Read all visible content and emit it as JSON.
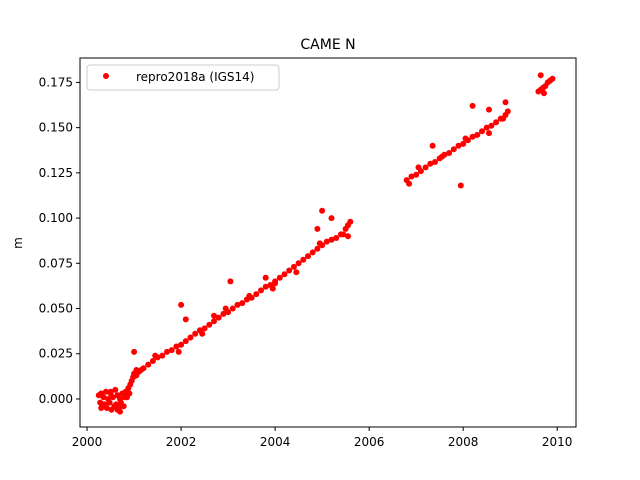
{
  "chart_data": {
    "type": "scatter",
    "title": "CAME N",
    "xlabel": "",
    "ylabel": "m",
    "xlim": [
      1999.85,
      2010.4
    ],
    "ylim": [
      -0.0155,
      0.1885
    ],
    "grid": false,
    "legend": {
      "placement": "top-left",
      "entries": [
        "repro2018a (IGS14)"
      ]
    },
    "x_ticks": [
      2000,
      2002,
      2004,
      2006,
      2008,
      2010
    ],
    "x_tick_labels": [
      "2000",
      "2002",
      "2004",
      "2006",
      "2008",
      "2010"
    ],
    "y_ticks": [
      0.0,
      0.025,
      0.05,
      0.075,
      0.1,
      0.125,
      0.15,
      0.175
    ],
    "y_tick_labels": [
      "0.000",
      "0.025",
      "0.050",
      "0.075",
      "0.100",
      "0.125",
      "0.150",
      "0.175"
    ],
    "series": [
      {
        "name": "repro2018a (IGS14)",
        "color": "#ff0000",
        "marker": "circle",
        "x": [
          2000.25,
          2000.28,
          2000.3,
          2000.32,
          2000.35,
          2000.38,
          2000.4,
          2000.42,
          2000.45,
          2000.48,
          2000.5,
          2000.52,
          2000.55,
          2000.58,
          2000.6,
          2000.62,
          2000.65,
          2000.68,
          2000.7,
          2000.72,
          2000.75,
          2000.78,
          2000.8,
          2000.82,
          2000.85,
          2000.88,
          2000.9,
          2000.92,
          2000.95,
          2000.98,
          2001.0,
          2001.05,
          2001.1,
          2001.15,
          2001.2,
          2001.3,
          2001.4,
          2001.5,
          2001.6,
          2001.7,
          2001.8,
          2001.9,
          2002.0,
          2002.1,
          2002.2,
          2002.3,
          2002.4,
          2002.5,
          2002.6,
          2002.7,
          2002.8,
          2002.9,
          2003.0,
          2003.1,
          2003.2,
          2003.3,
          2003.4,
          2003.5,
          2003.6,
          2003.7,
          2003.8,
          2003.9,
          2004.0,
          2004.1,
          2004.2,
          2004.3,
          2004.4,
          2004.5,
          2004.6,
          2004.7,
          2004.8,
          2004.9,
          2005.0,
          2005.1,
          2005.2,
          2005.3,
          2005.4,
          2005.5,
          2005.55,
          2005.6,
          2006.8,
          2006.9,
          2007.0,
          2007.1,
          2007.2,
          2007.3,
          2007.4,
          2007.5,
          2007.6,
          2007.7,
          2007.8,
          2007.9,
          2008.0,
          2008.1,
          2008.2,
          2008.3,
          2008.4,
          2008.5,
          2008.6,
          2008.7,
          2008.8,
          2008.9,
          2008.95,
          2009.6,
          2009.65,
          2009.7,
          2009.75,
          2009.8,
          2009.85,
          2009.9,
          2000.35,
          2000.5,
          2000.65,
          2000.8,
          2001.05,
          2001.45,
          2001.95,
          2002.45,
          2002.95,
          2003.45,
          2003.95,
          2004.45,
          2004.95,
          2005.45,
          2007.05,
          2007.55,
          2008.05,
          2008.55,
          2008.85,
          2009.72,
          2001.0,
          2002.0,
          2002.1,
          2003.05,
          2004.9,
          2005.0,
          2005.2,
          2005.55,
          2007.35,
          2007.95,
          2008.2,
          2008.55,
          2008.9,
          2009.65,
          2003.8,
          2004.0,
          2006.85,
          2000.3,
          2000.7,
          2002.7
        ],
        "y": [
          0.002,
          -0.002,
          0.003,
          -0.004,
          0.001,
          -0.003,
          0.004,
          -0.005,
          0.0,
          -0.002,
          0.003,
          -0.006,
          0.001,
          -0.004,
          0.005,
          -0.003,
          0.002,
          -0.005,
          0.0,
          -0.002,
          0.003,
          -0.004,
          0.002,
          0.004,
          0.001,
          0.006,
          0.003,
          0.008,
          0.01,
          0.012,
          0.014,
          0.013,
          0.015,
          0.016,
          0.017,
          0.019,
          0.021,
          0.023,
          0.024,
          0.026,
          0.027,
          0.029,
          0.03,
          0.032,
          0.034,
          0.036,
          0.038,
          0.039,
          0.041,
          0.043,
          0.045,
          0.047,
          0.048,
          0.05,
          0.052,
          0.053,
          0.055,
          0.056,
          0.058,
          0.06,
          0.062,
          0.063,
          0.065,
          0.067,
          0.069,
          0.071,
          0.073,
          0.075,
          0.077,
          0.079,
          0.081,
          0.083,
          0.085,
          0.087,
          0.088,
          0.089,
          0.091,
          0.094,
          0.096,
          0.098,
          0.121,
          0.123,
          0.124,
          0.126,
          0.128,
          0.13,
          0.131,
          0.133,
          0.135,
          0.136,
          0.138,
          0.14,
          0.141,
          0.143,
          0.145,
          0.146,
          0.148,
          0.15,
          0.151,
          0.153,
          0.155,
          0.157,
          0.159,
          0.17,
          0.171,
          0.172,
          0.173,
          0.175,
          0.176,
          0.177,
          -0.003,
          0.004,
          -0.006,
          0.001,
          0.016,
          0.024,
          0.026,
          0.036,
          0.05,
          0.057,
          0.061,
          0.07,
          0.086,
          0.091,
          0.128,
          0.134,
          0.144,
          0.147,
          0.155,
          0.169,
          0.026,
          0.052,
          0.044,
          0.065,
          0.094,
          0.104,
          0.1,
          0.09,
          0.14,
          0.118,
          0.162,
          0.16,
          0.164,
          0.179,
          0.067,
          0.064,
          0.119,
          -0.005,
          -0.007,
          0.046
        ]
      }
    ]
  }
}
